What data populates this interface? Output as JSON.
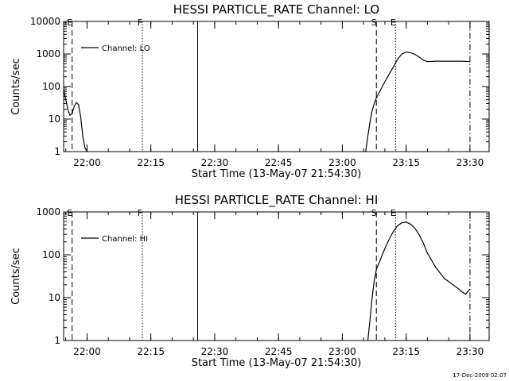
{
  "footer_date": "17-Dec-2009 02:07",
  "chart_data": [
    {
      "type": "line",
      "title": "HESSI PARTICLE_RATE Channel: LO",
      "xlabel": "Start Time (13-May-07 21:54:30)",
      "ylabel": "Counts/sec",
      "yscale": "log",
      "ylim": [
        1,
        10000
      ],
      "y_ticks": [
        1,
        10,
        100,
        1000,
        10000
      ],
      "y_tick_labels": [
        "1",
        "10",
        "100",
        "1000",
        "10000"
      ],
      "xlim": [
        "21:54:30",
        "23:34:30"
      ],
      "x_ticks": [
        "22:00",
        "22:15",
        "22:30",
        "22:45",
        "23:00",
        "23:15",
        "23:30"
      ],
      "legend": {
        "entry": "Channel: LO",
        "placement": "top-left"
      },
      "markers": [
        {
          "label": "E",
          "time": "21:56:30",
          "style": "dashed"
        },
        {
          "label": "F",
          "time": "22:13:00",
          "style": "dotted"
        },
        {
          "label": "",
          "time": "22:26:00",
          "style": "solid"
        },
        {
          "label": "S",
          "time": "23:08:00",
          "style": "dashed"
        },
        {
          "label": "E",
          "time": "23:12:30",
          "style": "dotted"
        },
        {
          "label": "",
          "time": "23:30:00",
          "style": "dashdot"
        }
      ],
      "series": [
        {
          "name": "Channel: LO",
          "segments": [
            {
              "x": [
                "21:54:30",
                "21:55:00",
                "21:55:30",
                "21:56:00",
                "21:56:30",
                "21:57:00",
                "21:57:30",
                "21:58:00",
                "21:58:30",
                "21:59:00",
                "21:59:30",
                "22:00:00"
              ],
              "y": [
                80,
                40,
                20,
                13,
                15,
                25,
                32,
                28,
                12,
                3,
                1.3,
                1
              ]
            },
            {
              "x": [
                "23:05:30",
                "23:06:00",
                "23:06:30",
                "23:07:00",
                "23:07:30",
                "23:08:00",
                "23:09:00",
                "23:10:00",
                "23:11:00",
                "23:12:00",
                "23:13:00",
                "23:14:00",
                "23:15:00",
                "23:16:00",
                "23:17:00",
                "23:18:00",
                "23:19:00",
                "23:20:00",
                "23:22:00",
                "23:25:00",
                "23:28:00",
                "23:30:00"
              ],
              "y": [
                1,
                3,
                8,
                18,
                30,
                45,
                80,
                140,
                240,
                400,
                700,
                1000,
                1150,
                1100,
                980,
                820,
                650,
                580,
                600,
                600,
                600,
                580
              ]
            }
          ]
        }
      ]
    },
    {
      "type": "line",
      "title": "HESSI PARTICLE_RATE Channel: HI",
      "xlabel": "Start Time (13-May-07 21:54:30)",
      "ylabel": "Counts/sec",
      "yscale": "log",
      "ylim": [
        1,
        1000
      ],
      "y_ticks": [
        1,
        10,
        100,
        1000
      ],
      "y_tick_labels": [
        "1",
        "10",
        "100",
        "1000"
      ],
      "xlim": [
        "21:54:30",
        "23:34:30"
      ],
      "x_ticks": [
        "22:00",
        "22:15",
        "22:30",
        "22:45",
        "23:00",
        "23:15",
        "23:30"
      ],
      "legend": {
        "entry": "Channel: HI",
        "placement": "top-left"
      },
      "markers": [
        {
          "label": "E",
          "time": "21:56:30",
          "style": "dashed"
        },
        {
          "label": "F",
          "time": "22:13:00",
          "style": "dotted"
        },
        {
          "label": "",
          "time": "22:26:00",
          "style": "solid"
        },
        {
          "label": "S",
          "time": "23:08:00",
          "style": "dashed"
        },
        {
          "label": "E",
          "time": "23:12:30",
          "style": "dotted"
        },
        {
          "label": "",
          "time": "23:30:00",
          "style": "dashdot"
        }
      ],
      "series": [
        {
          "name": "Channel: HI",
          "segments": [
            {
              "x": [
                "23:06:00",
                "23:06:30",
                "23:07:00",
                "23:07:30",
                "23:08:00",
                "23:09:00",
                "23:10:00",
                "23:11:00",
                "23:12:00",
                "23:13:00",
                "23:14:00",
                "23:15:00",
                "23:16:00",
                "23:17:00",
                "23:18:00",
                "23:19:00",
                "23:20:00",
                "23:22:00",
                "23:24:00",
                "23:26:00",
                "23:27:00",
                "23:28:00",
                "23:29:00",
                "23:29:30",
                "23:30:00"
              ],
              "y": [
                1,
                3,
                10,
                25,
                45,
                80,
                140,
                230,
                350,
                480,
                560,
                580,
                520,
                420,
                300,
                190,
                110,
                50,
                28,
                20,
                17,
                14,
                12,
                14,
                16
              ]
            }
          ]
        }
      ]
    }
  ]
}
